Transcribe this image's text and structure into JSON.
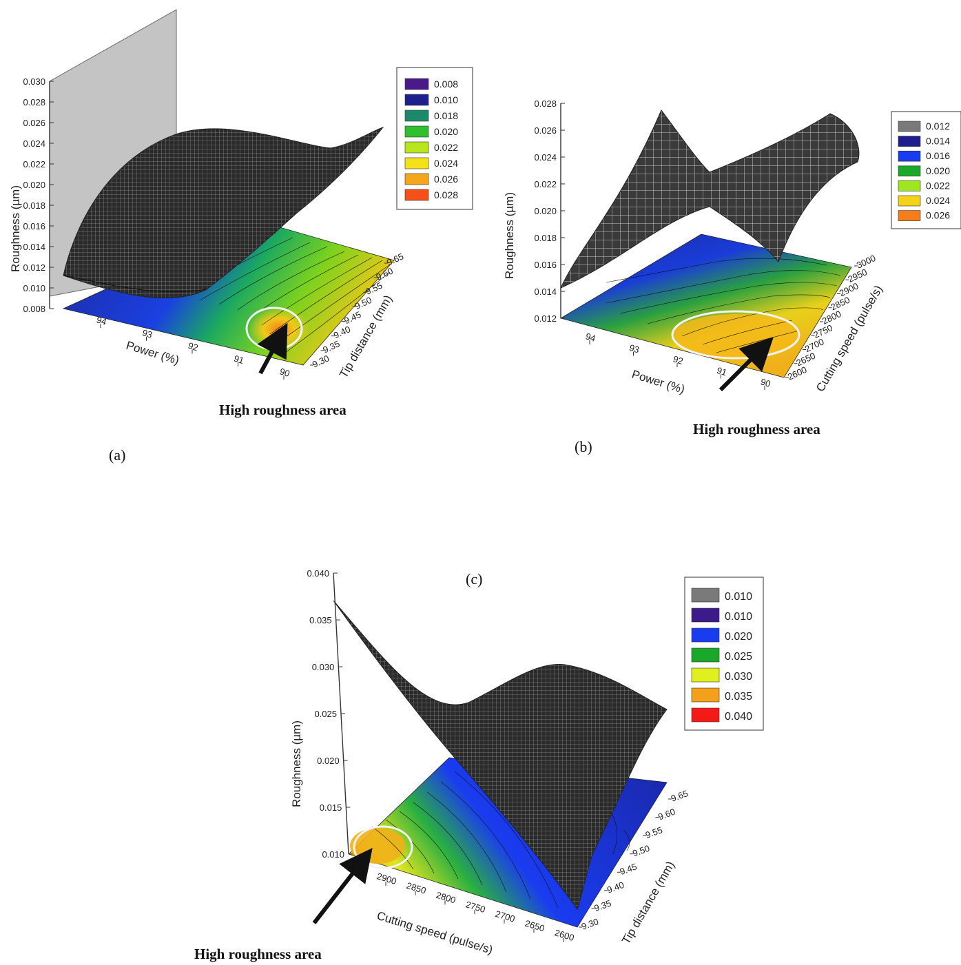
{
  "chart_data": [
    {
      "panel_label": "(a)",
      "type": "surface3d",
      "zlabel": "Roughness (µm)",
      "xlabel": "Power (%)",
      "ylabel": "Tip distance (mm)",
      "z_ticks": [
        "0.008",
        "0.010",
        "0.012",
        "0.014",
        "0.016",
        "0.018",
        "0.020",
        "0.022",
        "0.024",
        "0.026",
        "0.028",
        "0.030"
      ],
      "x_ticks": [
        "94",
        "93",
        "92",
        "91",
        "90"
      ],
      "y_ticks": [
        "9.30",
        "9.35",
        "9.40",
        "9.45",
        "9.50",
        "9.55",
        "9.60",
        "9.65"
      ],
      "zlim": [
        0.008,
        0.03
      ],
      "legend": [
        {
          "label": "0.008",
          "color": "#4b1a8a"
        },
        {
          "label": "0.010",
          "color": "#1e1e8c"
        },
        {
          "label": "0.018",
          "color": "#1a8a6a"
        },
        {
          "label": "0.020",
          "color": "#2fbf2f"
        },
        {
          "label": "0.022",
          "color": "#b8e61e"
        },
        {
          "label": "0.024",
          "color": "#f5e11a"
        },
        {
          "label": "0.026",
          "color": "#f5a51a"
        },
        {
          "label": "0.028",
          "color": "#f5501a"
        }
      ],
      "annotation": "High roughness area"
    },
    {
      "panel_label": "(b)",
      "type": "surface3d",
      "zlabel": "Roughness (µm)",
      "xlabel": "Power (%)",
      "ylabel": "Cutting speed (pulse/s)",
      "z_ticks": [
        "0.012",
        "0.014",
        "0.016",
        "0.018",
        "0.020",
        "0.022",
        "0.024",
        "0.026",
        "0.028"
      ],
      "x_ticks": [
        "94",
        "93",
        "92",
        "91",
        "90"
      ],
      "y_ticks": [
        "2600",
        "2650",
        "2700",
        "2750",
        "2800",
        "2850",
        "2900",
        "2950",
        "3000"
      ],
      "zlim": [
        0.012,
        0.028
      ],
      "legend": [
        {
          "label": "0.012",
          "color": "#7a7a7a"
        },
        {
          "label": "0.014",
          "color": "#1e1e8c"
        },
        {
          "label": "0.016",
          "color": "#1a3cf0"
        },
        {
          "label": "0.020",
          "color": "#1aa82a"
        },
        {
          "label": "0.022",
          "color": "#9ee61e"
        },
        {
          "label": "0.024",
          "color": "#f5d21a"
        },
        {
          "label": "0.026",
          "color": "#f57d1a"
        }
      ],
      "annotation": "High roughness area"
    },
    {
      "panel_label": "(c)",
      "type": "surface3d",
      "zlabel": "Roughness (µm)",
      "xlabel": "Cutting speed (pulse/s)",
      "ylabel": "Tip distance (mm)",
      "z_ticks": [
        "0.010",
        "0.015",
        "0.020",
        "0.025",
        "0.030",
        "0.035",
        "0.040"
      ],
      "x_ticks": [
        "2900",
        "2850",
        "2800",
        "2750",
        "2700",
        "2650",
        "2600"
      ],
      "y_ticks": [
        "9.30",
        "9.35",
        "9.40",
        "9.45",
        "9.50",
        "9.55",
        "9.60",
        "9.65"
      ],
      "zlim": [
        0.01,
        0.04
      ],
      "legend": [
        {
          "label": "0.010",
          "color": "#7a7a7a"
        },
        {
          "label": "0.010",
          "color": "#3d1a8a"
        },
        {
          "label": "0.020",
          "color": "#1a3cf0"
        },
        {
          "label": "0.025",
          "color": "#1aa82a"
        },
        {
          "label": "0.030",
          "color": "#e0f01e"
        },
        {
          "label": "0.035",
          "color": "#f5a01a"
        },
        {
          "label": "0.040",
          "color": "#f51a1a"
        }
      ],
      "annotation": "High roughness area"
    }
  ]
}
